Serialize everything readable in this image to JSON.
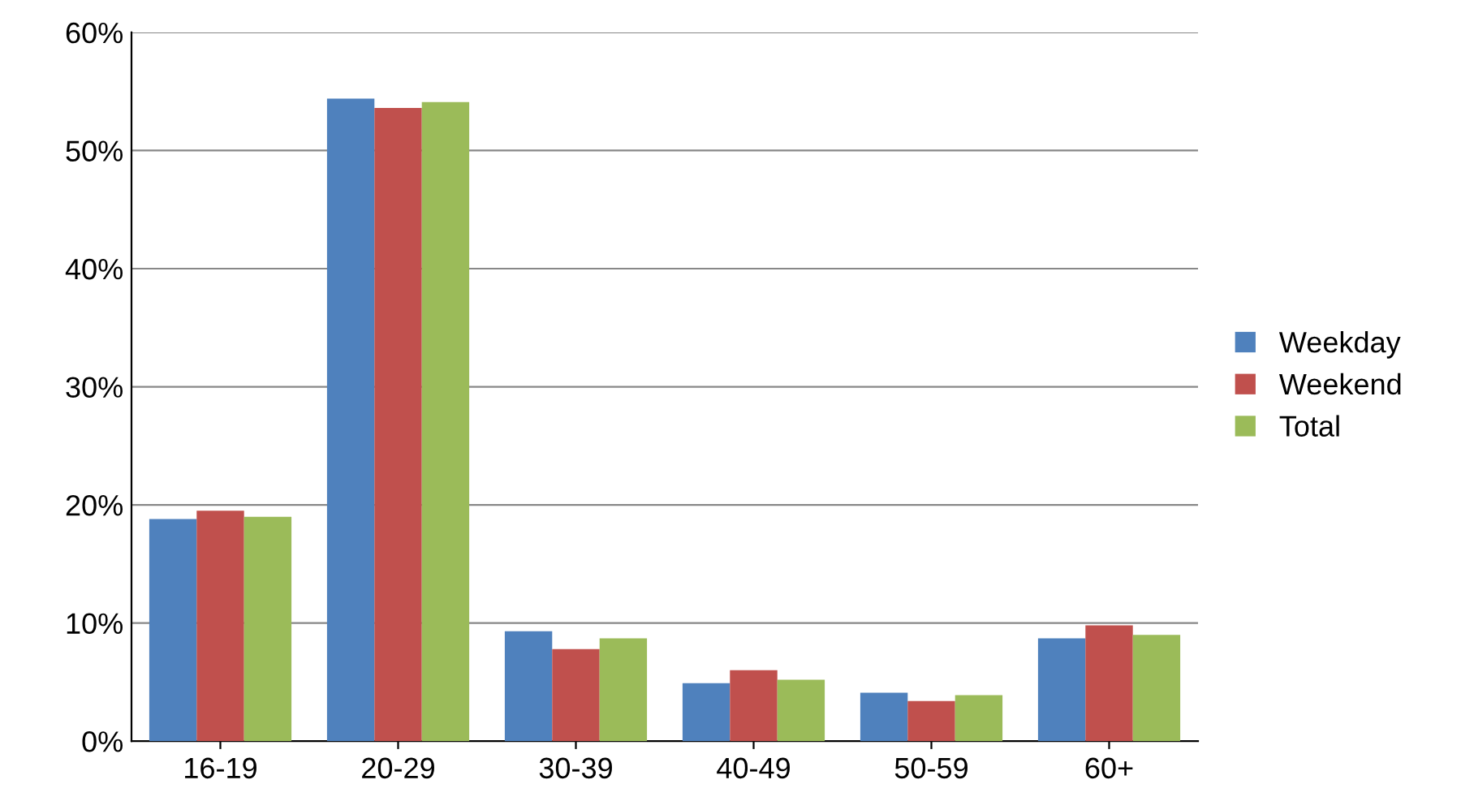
{
  "chart_data": {
    "type": "bar",
    "categories": [
      "16-19",
      "20-29",
      "30-39",
      "40-49",
      "50-59",
      "60+"
    ],
    "series": [
      {
        "name": "Weekday",
        "color": "#4f81bd",
        "values": [
          18.8,
          54.4,
          9.3,
          4.9,
          4.1,
          8.7
        ]
      },
      {
        "name": "Weekend",
        "color": "#c0504d",
        "values": [
          19.5,
          53.6,
          7.8,
          6.0,
          3.4,
          9.8
        ]
      },
      {
        "name": "Total",
        "color": "#9bbb59",
        "values": [
          19.0,
          54.1,
          8.7,
          5.2,
          3.9,
          9.0
        ]
      }
    ],
    "ylim": [
      0,
      60
    ],
    "yticks": [
      {
        "value": 0,
        "label": "0%"
      },
      {
        "value": 10,
        "label": "10%"
      },
      {
        "value": 20,
        "label": "20%"
      },
      {
        "value": 30,
        "label": "30%"
      },
      {
        "value": 40,
        "label": "40%"
      },
      {
        "value": 50,
        "label": "50%"
      },
      {
        "value": 60,
        "label": "60%"
      }
    ],
    "grid": "y",
    "legend": "right"
  }
}
